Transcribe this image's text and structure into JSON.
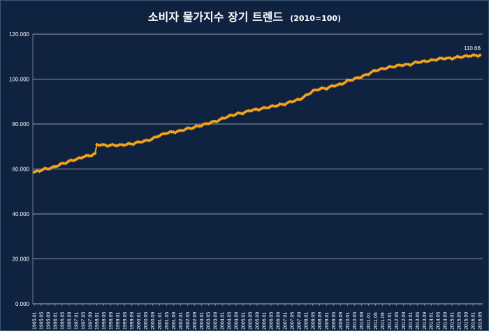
{
  "chart_data": {
    "type": "line",
    "title": "소비자 물가지수 장기 트렌드",
    "subtitle": "(2010=100)",
    "xlabel": "",
    "ylabel": "",
    "ylim": [
      0,
      120
    ],
    "y_ticks": [
      "0.000",
      "20.000",
      "40.000",
      "60.000",
      "80.000",
      "100.000",
      "120.000"
    ],
    "grid": "horizontal",
    "legend": "none",
    "marker": "diamond",
    "series_color": "#f5a21b",
    "x_tick_labels": [
      "1995.01",
      "1995.05",
      "1995.09",
      "1996.01",
      "1996.05",
      "1996.09",
      "1997.01",
      "1997.05",
      "1997.09",
      "1998.01",
      "1998.05",
      "1998.09",
      "1999.01",
      "1999.05",
      "1999.09",
      "2000.01",
      "2000.05",
      "2000.09",
      "2001.01",
      "2001.05",
      "2001.09",
      "2002.01",
      "2002.05",
      "2002.09",
      "2003.01",
      "2003.05",
      "2003.09",
      "2004.01",
      "2004.05",
      "2004.09",
      "2005.01",
      "2005.05",
      "2005.09",
      "2006.01",
      "2006.05",
      "2006.09",
      "2007.01",
      "2007.05",
      "2007.09",
      "2008.01",
      "2008.05",
      "2008.09",
      "2009.01",
      "2009.05",
      "2009.09",
      "2010.01",
      "2010.05",
      "2010.09",
      "2011.01",
      "2011.05",
      "2011.09",
      "2012.01",
      "2012.05",
      "2012.09",
      "2013.01",
      "2013.05",
      "2013.09",
      "2014.01",
      "2014.05",
      "2014.09",
      "2015.01",
      "2015.05",
      "2015.09",
      "2016.01",
      "2016.05"
    ],
    "x": [
      "1995.01",
      "1995.05",
      "1995.09",
      "1996.01",
      "1996.05",
      "1996.09",
      "1997.01",
      "1997.05",
      "1997.09",
      "1997.12",
      "1998.01",
      "1998.05",
      "1998.09",
      "1999.01",
      "1999.05",
      "1999.09",
      "2000.01",
      "2000.05",
      "2000.09",
      "2001.01",
      "2001.05",
      "2001.09",
      "2002.01",
      "2002.05",
      "2002.09",
      "2003.01",
      "2003.05",
      "2003.09",
      "2004.01",
      "2004.05",
      "2004.09",
      "2005.01",
      "2005.05",
      "2005.09",
      "2006.01",
      "2006.05",
      "2006.09",
      "2007.01",
      "2007.05",
      "2007.09",
      "2008.01",
      "2008.05",
      "2008.09",
      "2009.01",
      "2009.05",
      "2009.09",
      "2010.01",
      "2010.05",
      "2010.09",
      "2011.01",
      "2011.05",
      "2011.09",
      "2012.01",
      "2012.05",
      "2012.09",
      "2013.01",
      "2013.05",
      "2013.09",
      "2014.01",
      "2014.05",
      "2014.09",
      "2015.01",
      "2015.05",
      "2015.09",
      "2016.01",
      "2016.05"
    ],
    "series": [
      {
        "values": [
          58.6,
          59.5,
          60.2,
          61.0,
          62.3,
          63.4,
          64.3,
          65.4,
          66.0,
          66.8,
          70.8,
          70.6,
          70.5,
          70.6,
          70.8,
          71.2,
          71.9,
          72.5,
          73.4,
          75.0,
          76.0,
          76.5,
          76.9,
          78.0,
          78.5,
          79.5,
          80.3,
          81.2,
          82.3,
          83.6,
          84.4,
          85.0,
          86.0,
          86.5,
          87.0,
          87.8,
          88.3,
          89.0,
          90.0,
          90.9,
          92.5,
          94.7,
          95.6,
          96.0,
          97.0,
          97.7,
          99.1,
          100.2,
          101.0,
          102.4,
          103.8,
          104.6,
          105.2,
          105.9,
          106.3,
          106.6,
          107.5,
          107.9,
          108.2,
          109.0,
          109.2,
          109.3,
          109.8,
          110.2,
          110.4,
          110.66
        ]
      }
    ],
    "annotations": [
      {
        "label": "110.66",
        "x": "2016.05",
        "y": 110.66
      }
    ]
  }
}
